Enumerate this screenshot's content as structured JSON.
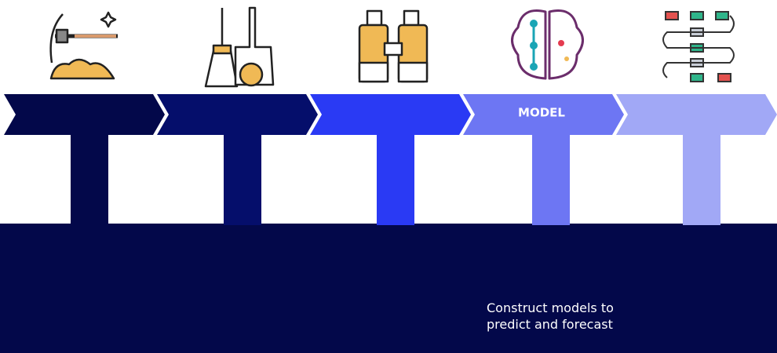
{
  "stage": {
    "label": "MODEL"
  },
  "description": {
    "lines": [
      "Construct models to",
      "predict and forecast"
    ]
  }
}
